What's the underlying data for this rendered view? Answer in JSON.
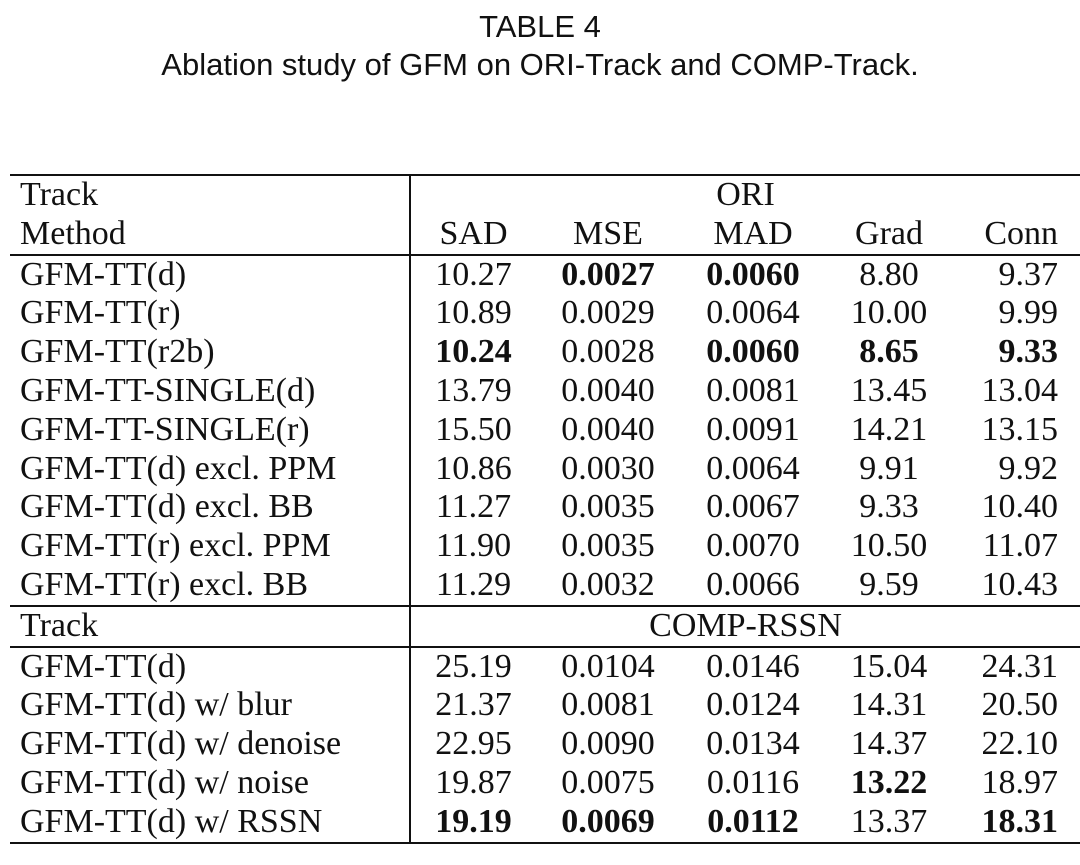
{
  "caption": {
    "label": "TABLE 4",
    "title": "Ablation study of GFM on ORI-Track and COMP-Track."
  },
  "table": {
    "track_label": "Track",
    "method_label": "Method",
    "columns": [
      "SAD",
      "MSE",
      "MAD",
      "Grad",
      "Conn"
    ],
    "sections": [
      {
        "name": "ORI",
        "rows": [
          {
            "method": "GFM-TT(d)",
            "values": [
              "10.27",
              "0.0027",
              "0.0060",
              "8.80",
              "9.37"
            ],
            "bold": [
              false,
              true,
              true,
              false,
              false
            ]
          },
          {
            "method": "GFM-TT(r)",
            "values": [
              "10.89",
              "0.0029",
              "0.0064",
              "10.00",
              "9.99"
            ],
            "bold": [
              false,
              false,
              false,
              false,
              false
            ]
          },
          {
            "method": "GFM-TT(r2b)",
            "values": [
              "10.24",
              "0.0028",
              "0.0060",
              "8.65",
              "9.33"
            ],
            "bold": [
              true,
              false,
              true,
              true,
              true
            ]
          },
          {
            "method": "GFM-TT-SINGLE(d)",
            "values": [
              "13.79",
              "0.0040",
              "0.0081",
              "13.45",
              "13.04"
            ],
            "bold": [
              false,
              false,
              false,
              false,
              false
            ]
          },
          {
            "method": "GFM-TT-SINGLE(r)",
            "values": [
              "15.50",
              "0.0040",
              "0.0091",
              "14.21",
              "13.15"
            ],
            "bold": [
              false,
              false,
              false,
              false,
              false
            ]
          },
          {
            "method": "GFM-TT(d) excl. PPM",
            "values": [
              "10.86",
              "0.0030",
              "0.0064",
              "9.91",
              "9.92"
            ],
            "bold": [
              false,
              false,
              false,
              false,
              false
            ]
          },
          {
            "method": "GFM-TT(d) excl. BB",
            "values": [
              "11.27",
              "0.0035",
              "0.0067",
              "9.33",
              "10.40"
            ],
            "bold": [
              false,
              false,
              false,
              false,
              false
            ]
          },
          {
            "method": "GFM-TT(r) excl. PPM",
            "values": [
              "11.90",
              "0.0035",
              "0.0070",
              "10.50",
              "11.07"
            ],
            "bold": [
              false,
              false,
              false,
              false,
              false
            ]
          },
          {
            "method": "GFM-TT(r) excl. BB",
            "values": [
              "11.29",
              "0.0032",
              "0.0066",
              "9.59",
              "10.43"
            ],
            "bold": [
              false,
              false,
              false,
              false,
              false
            ]
          }
        ]
      },
      {
        "name": "COMP-RSSN",
        "rows": [
          {
            "method": "GFM-TT(d)",
            "values": [
              "25.19",
              "0.0104",
              "0.0146",
              "15.04",
              "24.31"
            ],
            "bold": [
              false,
              false,
              false,
              false,
              false
            ]
          },
          {
            "method": "GFM-TT(d) w/ blur",
            "values": [
              "21.37",
              "0.0081",
              "0.0124",
              "14.31",
              "20.50"
            ],
            "bold": [
              false,
              false,
              false,
              false,
              false
            ]
          },
          {
            "method": "GFM-TT(d) w/ denoise",
            "values": [
              "22.95",
              "0.0090",
              "0.0134",
              "14.37",
              "22.10"
            ],
            "bold": [
              false,
              false,
              false,
              false,
              false
            ]
          },
          {
            "method": "GFM-TT(d) w/ noise",
            "values": [
              "19.87",
              "0.0075",
              "0.0116",
              "13.22",
              "18.97"
            ],
            "bold": [
              false,
              false,
              false,
              true,
              false
            ]
          },
          {
            "method": "GFM-TT(d) w/ RSSN",
            "values": [
              "19.19",
              "0.0069",
              "0.0112",
              "13.37",
              "18.31"
            ],
            "bold": [
              true,
              true,
              true,
              false,
              true
            ]
          }
        ]
      }
    ]
  }
}
